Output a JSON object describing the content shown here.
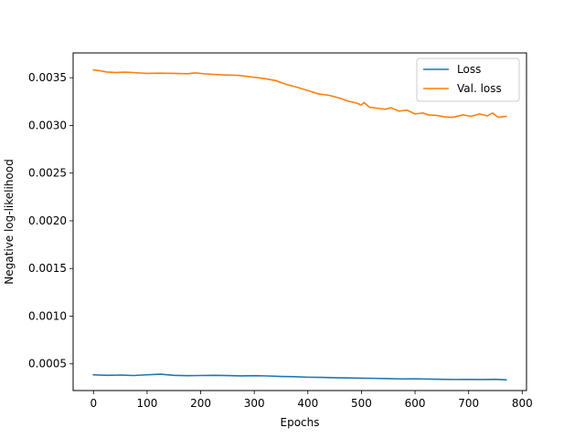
{
  "chart_data": {
    "type": "line",
    "title": "",
    "xlabel": "Epochs",
    "ylabel": "Negative log-likelihood",
    "xlim": [
      -38,
      808
    ],
    "ylim": [
      0.00022,
      0.00376
    ],
    "xticks": [
      0,
      100,
      200,
      300,
      400,
      500,
      600,
      700,
      800
    ],
    "xtick_labels": [
      "0",
      "100",
      "200",
      "300",
      "400",
      "500",
      "600",
      "700",
      "800"
    ],
    "yticks": [
      0.0005,
      0.001,
      0.0015,
      0.002,
      0.0025,
      0.003,
      0.0035
    ],
    "ytick_labels": [
      "0.0005",
      "0.0010",
      "0.0015",
      "0.0020",
      "0.0025",
      "0.0030",
      "0.0035"
    ],
    "grid": false,
    "legend": "top-right",
    "series": [
      {
        "name": "Loss",
        "color": "#1f77b4",
        "x": [
          0,
          25,
          50,
          75,
          100,
          125,
          150,
          175,
          200,
          225,
          250,
          275,
          300,
          325,
          350,
          375,
          400,
          425,
          450,
          475,
          500,
          525,
          550,
          575,
          600,
          625,
          650,
          675,
          700,
          725,
          750,
          770
        ],
        "y": [
          0.000385,
          0.00038,
          0.000382,
          0.000378,
          0.000385,
          0.000392,
          0.00038,
          0.000376,
          0.000378,
          0.00038,
          0.000377,
          0.000374,
          0.000376,
          0.000373,
          0.000368,
          0.000365,
          0.00036,
          0.000358,
          0.000355,
          0.000352,
          0.00035,
          0.000348,
          0.000345,
          0.000342,
          0.000343,
          0.00034,
          0.000338,
          0.000336,
          0.000337,
          0.000335,
          0.000338,
          0.000332
        ]
      },
      {
        "name": "Val. loss",
        "color": "#ff7f0e",
        "x": [
          0,
          10,
          25,
          40,
          60,
          80,
          100,
          125,
          150,
          175,
          190,
          210,
          240,
          270,
          300,
          320,
          340,
          360,
          380,
          400,
          420,
          440,
          460,
          475,
          490,
          500,
          505,
          515,
          530,
          545,
          555,
          570,
          585,
          600,
          615,
          625,
          640,
          655,
          670,
          690,
          705,
          720,
          735,
          745,
          755,
          770
        ],
        "y": [
          0.00358,
          0.003575,
          0.00356,
          0.003555,
          0.003558,
          0.003552,
          0.003545,
          0.003548,
          0.003545,
          0.003542,
          0.00355,
          0.00354,
          0.00353,
          0.003525,
          0.003505,
          0.00349,
          0.00347,
          0.00343,
          0.0034,
          0.003365,
          0.00333,
          0.003315,
          0.003285,
          0.003255,
          0.003235,
          0.003215,
          0.00324,
          0.00319,
          0.00318,
          0.00317,
          0.003185,
          0.00315,
          0.00316,
          0.00312,
          0.00313,
          0.00311,
          0.003105,
          0.00309,
          0.003085,
          0.00311,
          0.003095,
          0.00312,
          0.0031,
          0.00313,
          0.003085,
          0.003095
        ]
      }
    ]
  }
}
